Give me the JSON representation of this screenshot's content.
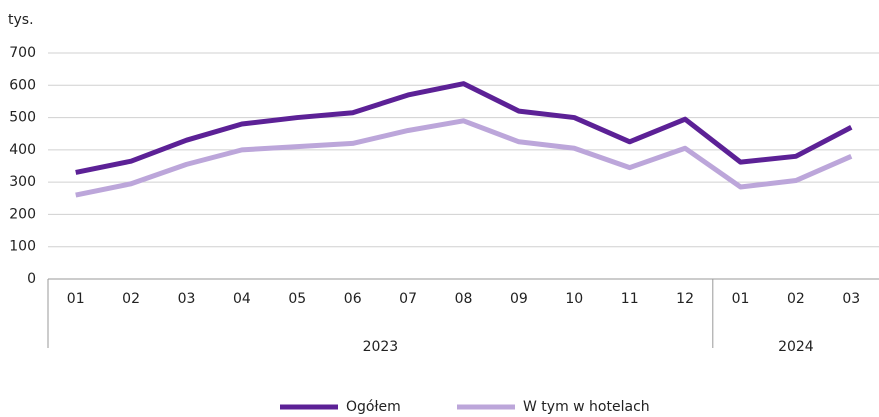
{
  "chart_data": {
    "type": "line",
    "y_unit": "tys.",
    "categories": [
      "01",
      "02",
      "03",
      "04",
      "05",
      "06",
      "07",
      "08",
      "09",
      "10",
      "11",
      "12",
      "01",
      "02",
      "03"
    ],
    "groups": [
      {
        "label": "2023",
        "count": 12
      },
      {
        "label": "2024",
        "count": 3
      }
    ],
    "series": [
      {
        "name": "Ogółem",
        "color": "#5c2196",
        "values": [
          330,
          365,
          430,
          480,
          500,
          515,
          570,
          605,
          520,
          500,
          425,
          495,
          362,
          380,
          470
        ]
      },
      {
        "name": "W tym w hotelach",
        "color": "#bca6da",
        "values": [
          260,
          295,
          355,
          400,
          410,
          420,
          460,
          490,
          425,
          405,
          345,
          405,
          285,
          305,
          380
        ]
      }
    ],
    "ylim": [
      0,
      700
    ],
    "yticks": [
      0,
      100,
      200,
      300,
      400,
      500,
      600,
      700
    ],
    "grid": true,
    "legend": "bottom"
  }
}
